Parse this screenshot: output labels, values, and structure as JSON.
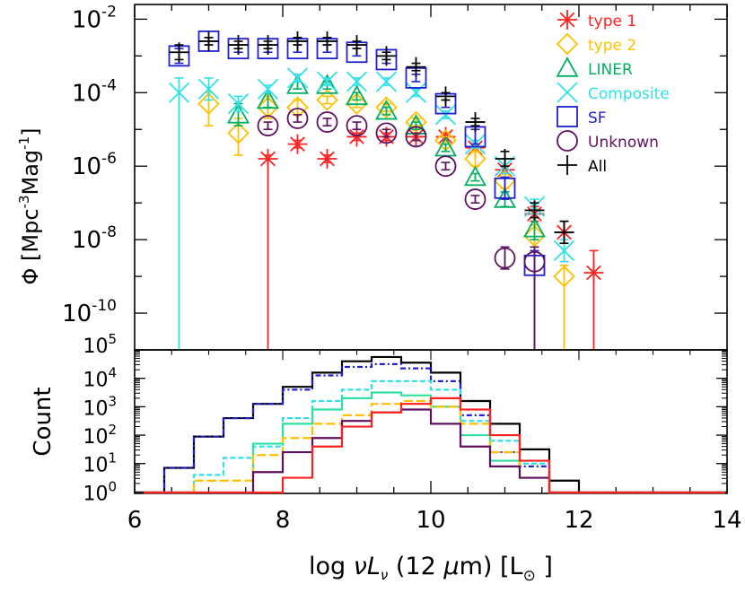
{
  "chart_data": [
    {
      "type": "scatter",
      "title": "",
      "ylabel_prefix": "Φ",
      "ylabel_units": "Mpc",
      "ylabel_exp1": "-3",
      "ylabel_mid": "Mag",
      "ylabel_exp2": "-1",
      "yscale": "log",
      "ylim_exp": [
        -11,
        -1.6
      ],
      "xlim": [
        6,
        14
      ],
      "ytick_labels": [
        {
          "base": "10",
          "exp": "-2",
          "value": -2
        },
        {
          "base": "10",
          "exp": "-4",
          "value": -4
        },
        {
          "base": "10",
          "exp": "-6",
          "value": -6
        },
        {
          "base": "10",
          "exp": "-8",
          "value": -8
        },
        {
          "base": "10",
          "exp": "-10",
          "value": -10
        }
      ],
      "legend_position": "top-right",
      "series": [
        {
          "name": "type 1",
          "marker": "asterisk",
          "color": "#ff2020",
          "x": [
            7.8,
            8.2,
            8.6,
            9.0,
            9.4,
            9.8,
            10.2,
            10.6,
            11.0,
            11.4,
            11.8,
            12.2
          ],
          "logy": [
            -5.8,
            -5.4,
            -5.8,
            -5.2,
            -5.2,
            -5.2,
            -5.2,
            -5.5,
            -6.1,
            -7.3,
            -7.8,
            -8.9
          ],
          "err_lo": [
            9,
            0.1,
            0.1,
            0.1,
            0.1,
            0.1,
            0.1,
            0.1,
            0.1,
            0.2,
            0.3,
            9
          ],
          "err_hi": [
            0.1,
            0.1,
            0.1,
            0.1,
            0.1,
            0.1,
            0.1,
            0.1,
            0.1,
            0.2,
            0.3,
            0.6
          ]
        },
        {
          "name": "type 2",
          "marker": "diamond",
          "color": "#ffc000",
          "x": [
            7.0,
            7.4,
            7.8,
            8.2,
            8.6,
            9.0,
            9.4,
            9.8,
            10.2,
            10.6,
            11.0,
            11.4,
            11.8
          ],
          "logy": [
            -4.3,
            -5.1,
            -4.4,
            -4.4,
            -4.2,
            -4.3,
            -4.4,
            -4.8,
            -5.3,
            -5.8,
            -6.4,
            -7.9,
            -9.0
          ],
          "err_lo": [
            0.6,
            0.6,
            0.3,
            0.2,
            0.1,
            0.1,
            0.1,
            0.1,
            0.1,
            0.2,
            0.2,
            0.3,
            9
          ],
          "err_hi": [
            0.3,
            0.4,
            0.3,
            0.2,
            0.1,
            0.1,
            0.1,
            0.1,
            0.1,
            0.2,
            0.2,
            0.3,
            0.3
          ]
        },
        {
          "name": "LINER",
          "marker": "triangle",
          "color": "#00b060",
          "x": [
            7.4,
            7.8,
            8.2,
            8.6,
            9.0,
            9.4,
            9.8,
            10.2,
            10.6,
            11.0,
            11.4
          ],
          "logy": [
            -4.6,
            -4.2,
            -3.8,
            -3.8,
            -4.1,
            -4.5,
            -4.9,
            -5.5,
            -6.3,
            -6.9,
            -7.7
          ],
          "err_lo": [
            0.3,
            0.2,
            0.1,
            0.1,
            0.1,
            0.1,
            0.1,
            0.1,
            0.1,
            0.2,
            0.3
          ],
          "err_hi": [
            0.3,
            0.2,
            0.1,
            0.1,
            0.1,
            0.1,
            0.1,
            0.1,
            0.1,
            0.2,
            0.3
          ]
        },
        {
          "name": "Composite",
          "marker": "cross",
          "color": "#30e0e8",
          "x": [
            6.6,
            7.0,
            7.4,
            7.8,
            8.2,
            8.6,
            9.0,
            9.4,
            9.8,
            10.2,
            10.6,
            11.0,
            11.4,
            11.8
          ],
          "logy": [
            -4.0,
            -3.9,
            -4.3,
            -3.9,
            -3.6,
            -3.7,
            -3.7,
            -3.7,
            -4.0,
            -4.6,
            -5.4,
            -6.0,
            -7.1,
            -8.3
          ],
          "err_lo": [
            9,
            0.3,
            0.2,
            0.1,
            0.1,
            0.1,
            0.1,
            0.1,
            0.1,
            0.1,
            0.1,
            0.2,
            0.2,
            0.3
          ],
          "err_hi": [
            0.4,
            0.3,
            0.2,
            0.1,
            0.1,
            0.1,
            0.1,
            0.1,
            0.1,
            0.1,
            0.1,
            0.2,
            0.2,
            0.3
          ]
        },
        {
          "name": "SF",
          "marker": "square",
          "color": "#2020d0",
          "x": [
            6.6,
            7.0,
            7.4,
            7.8,
            8.2,
            8.6,
            9.0,
            9.4,
            9.8,
            10.2,
            10.6,
            11.0,
            11.4
          ],
          "logy": [
            -3.0,
            -2.6,
            -2.8,
            -2.8,
            -2.8,
            -2.8,
            -2.9,
            -3.1,
            -3.6,
            -4.3,
            -5.2,
            -6.6,
            -8.7
          ],
          "err_lo": [
            0.2,
            0.1,
            0.1,
            0.1,
            0.1,
            0.1,
            0.1,
            0.1,
            0.1,
            0.1,
            0.2,
            0.3,
            9
          ],
          "err_hi": [
            0.2,
            0.1,
            0.1,
            0.1,
            0.1,
            0.1,
            0.1,
            0.1,
            0.1,
            0.1,
            0.2,
            0.3,
            0.4
          ]
        },
        {
          "name": "Unknown",
          "marker": "circle",
          "color": "#601060",
          "x": [
            7.8,
            8.2,
            8.6,
            9.0,
            9.4,
            9.8,
            10.2,
            10.6,
            11.0,
            11.4
          ],
          "logy": [
            -4.9,
            -4.7,
            -4.8,
            -4.9,
            -5.1,
            -5.2,
            -6.0,
            -6.9,
            -8.5,
            -8.6
          ],
          "err_lo": [
            0.1,
            0.1,
            0.1,
            0.1,
            0.1,
            0.1,
            0.1,
            0.1,
            0.3,
            9
          ],
          "err_hi": [
            0.1,
            0.1,
            0.1,
            0.1,
            0.1,
            0.1,
            0.1,
            0.1,
            0.3,
            0.4
          ]
        },
        {
          "name": "All",
          "marker": "plus",
          "color": "#000000",
          "x": [
            6.6,
            7.0,
            7.4,
            7.8,
            8.2,
            8.6,
            9.0,
            9.4,
            9.8,
            10.2,
            10.6,
            11.0,
            11.4,
            11.8
          ],
          "logy": [
            -2.9,
            -2.6,
            -2.7,
            -2.7,
            -2.6,
            -2.6,
            -2.7,
            -3.0,
            -3.3,
            -4.1,
            -4.8,
            -5.8,
            -7.2,
            -7.8
          ],
          "err_lo": [
            0.2,
            0.1,
            0.1,
            0.1,
            0.1,
            0.1,
            0.1,
            0.1,
            0.1,
            0.1,
            0.1,
            0.2,
            0.2,
            0.3
          ],
          "err_hi": [
            0.2,
            0.1,
            0.1,
            0.1,
            0.1,
            0.1,
            0.1,
            0.1,
            0.1,
            0.1,
            0.1,
            0.2,
            0.2,
            0.3
          ]
        }
      ]
    },
    {
      "type": "histogram",
      "ylabel": "Count",
      "yscale": "log",
      "ylim_exp": [
        -0.05,
        5
      ],
      "ytick_labels": [
        {
          "base": "10",
          "exp": "5",
          "value": 5
        },
        {
          "base": "10",
          "exp": "4",
          "value": 4
        },
        {
          "base": "10",
          "exp": "3",
          "value": 3
        },
        {
          "base": "10",
          "exp": "2",
          "value": 2
        },
        {
          "base": "10",
          "exp": "1",
          "value": 1
        },
        {
          "base": "10",
          "exp": "0",
          "value": 0
        }
      ],
      "xlabel_pre": "log",
      "xlabel_nu": "νL",
      "xlabel_sub": "ν",
      "xlabel_mid": "(12",
      "xlabel_mu": "μ",
      "xlabel_m": "m)",
      "xlabel_unit": "[L",
      "xlabel_end": "]",
      "xtick_labels": [
        "6",
        "8",
        "10",
        "12",
        "14"
      ],
      "xticks": [
        6,
        8,
        10,
        12,
        14
      ],
      "bin_edges": [
        6.4,
        6.8,
        7.2,
        7.6,
        8.0,
        8.4,
        8.8,
        9.2,
        9.6,
        10.0,
        10.4,
        10.8,
        11.2,
        11.6,
        12.0
      ],
      "series": [
        {
          "name": "All",
          "color": "#000000",
          "dash": "",
          "logcounts": [
            0.85,
            1.95,
            2.6,
            3.1,
            3.7,
            4.2,
            4.6,
            4.75,
            4.55,
            4.2,
            3.2,
            2.4,
            1.5,
            0.4
          ]
        },
        {
          "name": "SF",
          "color": "#2020d0",
          "dash": "6 3 2 3",
          "logcounts": [
            0.85,
            1.95,
            2.6,
            3.1,
            3.6,
            4.1,
            4.4,
            4.5,
            4.35,
            3.9,
            2.7,
            1.4,
            0.9,
            -0.1
          ]
        },
        {
          "name": "Composite",
          "color": "#30e0e8",
          "dash": "6 3",
          "logcounts": [
            -0.1,
            0.6,
            1.2,
            1.6,
            2.6,
            3.2,
            3.6,
            3.9,
            3.9,
            3.6,
            2.5,
            1.8,
            1.0,
            -0.1
          ]
        },
        {
          "name": "LINER",
          "color": "#30e0a0",
          "dash": "",
          "logcounts": [
            -0.1,
            -0.1,
            -0.1,
            1.7,
            2.4,
            2.9,
            3.3,
            3.5,
            3.4,
            3.0,
            2.0,
            1.1,
            0.5,
            -0.1
          ]
        },
        {
          "name": "type 2",
          "color": "#ffc000",
          "dash": "10 4",
          "logcounts": [
            -0.1,
            0.4,
            0.4,
            1.3,
            1.9,
            2.4,
            2.7,
            3.1,
            3.2,
            3.0,
            2.4,
            1.4,
            0.5,
            -0.1
          ]
        },
        {
          "name": "Unknown",
          "color": "#601060",
          "dash": "",
          "logcounts": [
            -0.1,
            -0.1,
            -0.1,
            0.7,
            1.4,
            1.9,
            2.5,
            2.8,
            2.9,
            2.4,
            1.6,
            0.9,
            0.5,
            -0.1
          ]
        },
        {
          "name": "type 1",
          "color": "#ff2020",
          "dash": "",
          "logcounts": [
            -0.1,
            -0.1,
            -0.1,
            -0.1,
            0.5,
            1.6,
            2.3,
            2.8,
            3.1,
            3.3,
            2.9,
            2.0,
            1.1,
            0.0
          ]
        }
      ]
    }
  ]
}
